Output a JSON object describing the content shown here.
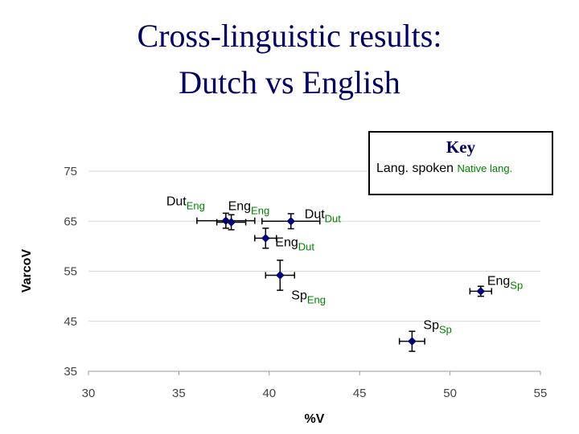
{
  "title_line1": "Cross-linguistic results:",
  "title_line2": "Dutch vs English",
  "key": {
    "title": "Key",
    "lang_spoken": "Lang. spoken",
    "native_lang": "Native lang."
  },
  "chart_data": {
    "type": "scatter",
    "xlabel": "%V",
    "ylabel": "VarcoV",
    "xlim": [
      30,
      55
    ],
    "ylim": [
      35,
      75
    ],
    "xticks": [
      30,
      35,
      40,
      45,
      50,
      55
    ],
    "yticks": [
      35,
      45,
      55,
      65,
      75
    ],
    "points": [
      {
        "main": "Dut",
        "sub": "Eng",
        "x": 37.6,
        "y": 65.1,
        "xerr": 1.6,
        "yerr": 1.5
      },
      {
        "main": "Eng",
        "sub": "Eng",
        "x": 37.9,
        "y": 64.8,
        "xerr": 0.8,
        "yerr": 1.5
      },
      {
        "main": "Dut",
        "sub": "Dut",
        "x": 41.2,
        "y": 65.0,
        "xerr": 1.6,
        "yerr": 1.5
      },
      {
        "main": "Eng",
        "sub": "Dut",
        "x": 39.8,
        "y": 61.6,
        "xerr": 0.6,
        "yerr": 2.0
      },
      {
        "main": "Sp",
        "sub": "Eng",
        "x": 40.6,
        "y": 54.2,
        "xerr": 0.8,
        "yerr": 3.0
      },
      {
        "main": "Eng",
        "sub": "Sp",
        "x": 51.7,
        "y": 51.0,
        "xerr": 0.6,
        "yerr": 1.0
      },
      {
        "main": "Sp",
        "sub": "Sp",
        "x": 47.9,
        "y": 41.0,
        "xerr": 0.7,
        "yerr": 2.0
      }
    ]
  }
}
